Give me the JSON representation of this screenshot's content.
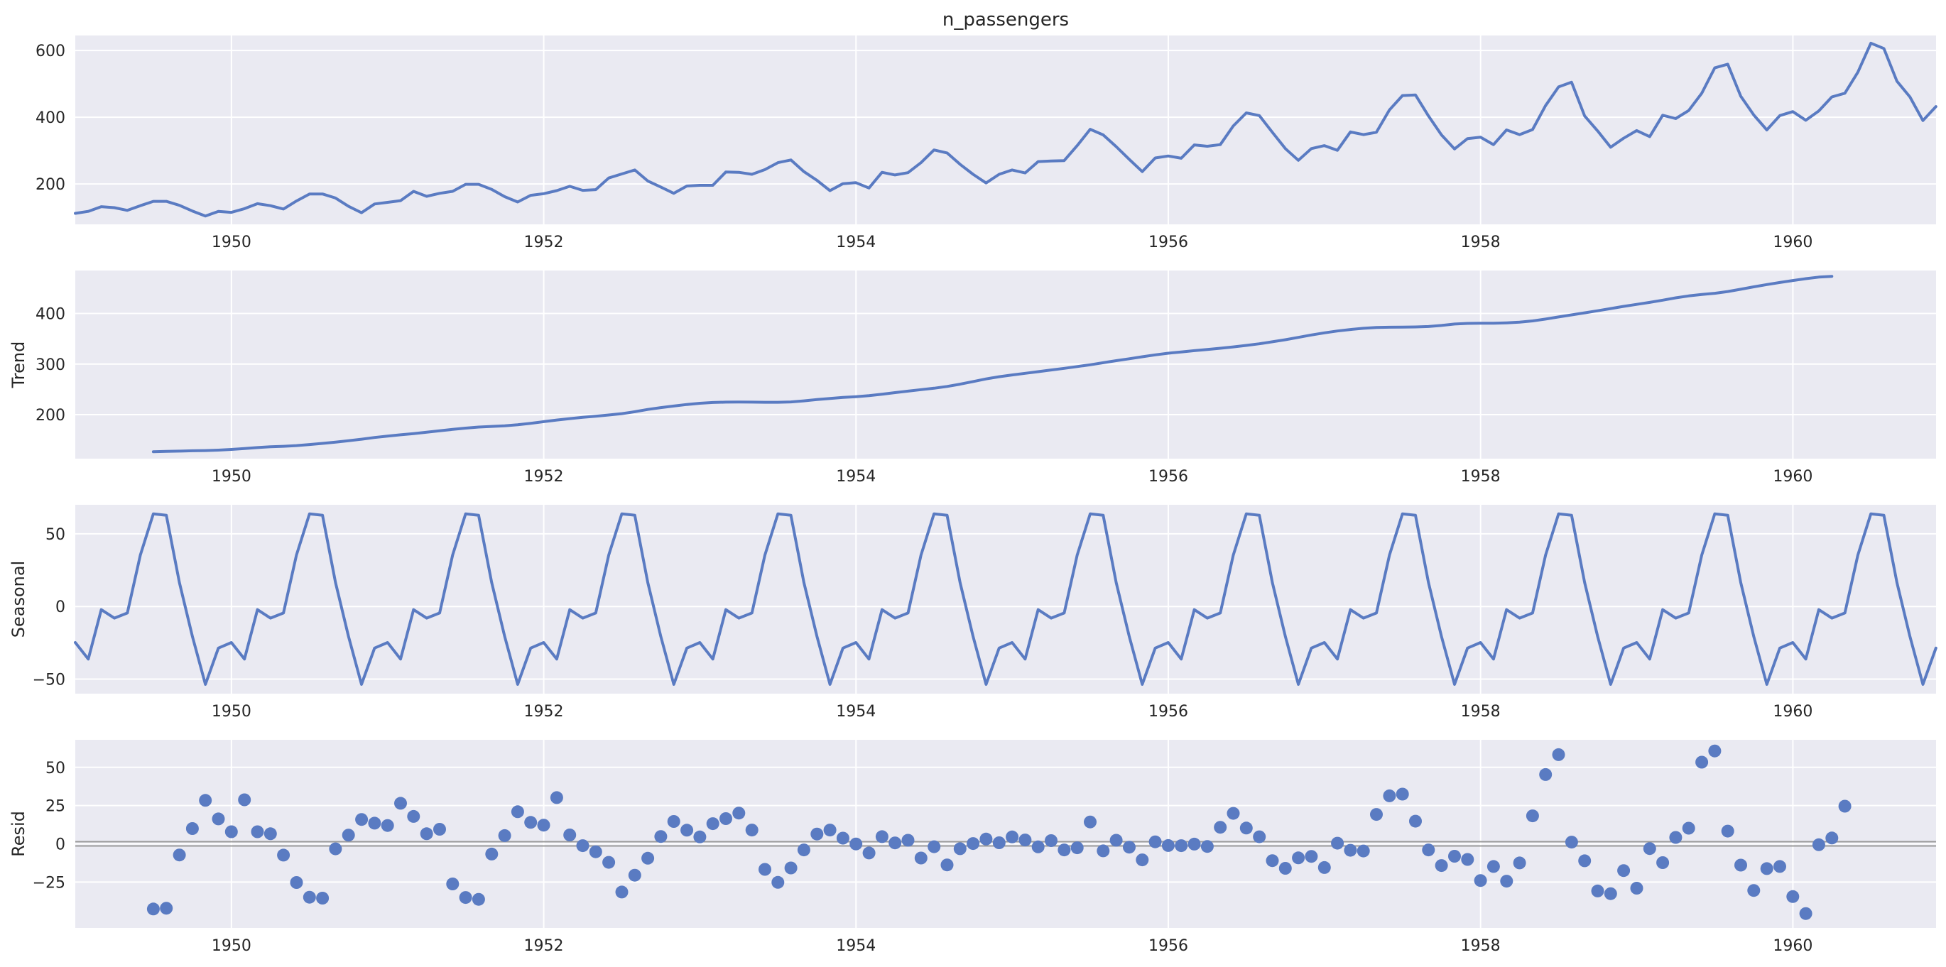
{
  "chart_data": [
    {
      "type": "line",
      "title": "n_passengers",
      "ylabel": "",
      "xlim": [
        1949.0,
        1960.917
      ],
      "ylim": [
        79,
        645
      ],
      "x_ticks": [
        "1950",
        "1952",
        "1954",
        "1956",
        "1958",
        "1960"
      ],
      "y_ticks": [
        "200",
        "400",
        "600"
      ],
      "series": [
        {
          "x_start": 1949.0,
          "x_step": 0.08333,
          "values": [
            112,
            118,
            132,
            129,
            121,
            135,
            148,
            148,
            136,
            119,
            104,
            118,
            115,
            126,
            141,
            135,
            125,
            149,
            170,
            170,
            158,
            133,
            114,
            140,
            145,
            150,
            178,
            163,
            172,
            178,
            199,
            199,
            184,
            162,
            146,
            166,
            171,
            180,
            193,
            181,
            183,
            218,
            230,
            242,
            209,
            191,
            172,
            194,
            196,
            196,
            236,
            235,
            229,
            243,
            264,
            272,
            237,
            211,
            180,
            201,
            204,
            188,
            235,
            227,
            234,
            264,
            302,
            293,
            259,
            229,
            203,
            229,
            242,
            233,
            267,
            269,
            270,
            315,
            364,
            347,
            312,
            274,
            237,
            278,
            284,
            277,
            317,
            313,
            318,
            374,
            413,
            405,
            355,
            306,
            271,
            306,
            315,
            301,
            356,
            348,
            355,
            422,
            465,
            467,
            404,
            347,
            305,
            336,
            340,
            318,
            362,
            348,
            363,
            435,
            491,
            505,
            404,
            359,
            310,
            337,
            360,
            342,
            406,
            396,
            420,
            472,
            548,
            559,
            463,
            407,
            362,
            405,
            417,
            391,
            419,
            461,
            472,
            535,
            622,
            606,
            508,
            461,
            390,
            432
          ]
        }
      ]
    },
    {
      "type": "line",
      "title": "",
      "ylabel": "Trend",
      "xlim": [
        1949.0,
        1960.917
      ],
      "ylim": [
        113,
        485
      ],
      "x_ticks": [
        "1950",
        "1952",
        "1954",
        "1956",
        "1958",
        "1960"
      ],
      "y_ticks": [
        "200",
        "300",
        "400"
      ],
      "series": [
        {
          "x_start": 1949.5,
          "x_step": 0.08333,
          "values": [
            126.8,
            127.3,
            127.9,
            128.6,
            129.0,
            129.8,
            131.3,
            133.1,
            134.9,
            136.4,
            137.4,
            138.8,
            140.9,
            143.2,
            145.7,
            148.4,
            151.5,
            154.9,
            157.6,
            160.1,
            162.6,
            165.3,
            168.1,
            170.8,
            173.3,
            175.4,
            176.8,
            178.0,
            180.0,
            182.8,
            186.1,
            189.4,
            192.2,
            194.8,
            197.0,
            199.3,
            202.0,
            205.8,
            210.3,
            213.9,
            217.0,
            220.1,
            222.5,
            224.1,
            224.7,
            225.0,
            224.8,
            224.5,
            224.5,
            225.2,
            227.3,
            229.9,
            232.0,
            234.0,
            235.6,
            237.6,
            240.3,
            243.5,
            246.5,
            249.4,
            252.2,
            255.7,
            260.3,
            265.5,
            270.6,
            275.0,
            278.5,
            281.8,
            285.0,
            288.3,
            291.6,
            295.0,
            298.6,
            302.7,
            306.7,
            310.5,
            314.5,
            318.3,
            321.4,
            324.0,
            326.5,
            328.8,
            331.3,
            333.9,
            336.9,
            340.2,
            344.0,
            348.1,
            352.8,
            357.6,
            361.7,
            365.4,
            368.4,
            370.8,
            372.3,
            372.8,
            373.0,
            373.4,
            374.3,
            376.4,
            379.2,
            380.4,
            380.7,
            380.9,
            381.5,
            382.8,
            385.4,
            389.0,
            393.2,
            397.3,
            401.4,
            405.4,
            409.8,
            414.1,
            418.0,
            422.0,
            426.3,
            430.9,
            434.8,
            437.5,
            440.0,
            443.5,
            448.0,
            452.7,
            457.2,
            461.3,
            465.2,
            468.8,
            471.9,
            473.5
          ]
        }
      ]
    },
    {
      "type": "line",
      "title": "",
      "ylabel": "Seasonal",
      "xlim": [
        1949.0,
        1960.917
      ],
      "ylim": [
        -60,
        70
      ],
      "x_ticks": [
        "1950",
        "1952",
        "1954",
        "1956",
        "1958",
        "1960"
      ],
      "y_ticks": [
        "50",
        "0",
        "−50"
      ],
      "series": [
        {
          "x_start": 1949.0,
          "x_step": 0.08333,
          "cycle": [
            -24.8,
            -36.2,
            -2.2,
            -8.0,
            -4.5,
            35.4,
            63.8,
            62.8,
            16.5,
            -20.6,
            -53.6,
            -28.6
          ],
          "n_points": 144
        }
      ]
    },
    {
      "type": "scatter",
      "title": "",
      "ylabel": "Resid",
      "xlim": [
        1949.0,
        1960.917
      ],
      "ylim": [
        -55,
        68
      ],
      "x_ticks": [
        "1950",
        "1952",
        "1954",
        "1956",
        "1958",
        "1960"
      ],
      "y_ticks": [
        "50",
        "25",
        "0",
        "−25"
      ],
      "baseline": 0,
      "series": [
        {
          "x_start": 1949.5,
          "x_step": 0.08333,
          "values": [
            -42.6,
            -42.1,
            -7.3,
            10.0,
            28.4,
            16.3,
            7.9,
            28.8,
            7.9,
            6.6,
            -7.4,
            -25.3,
            -34.9,
            -35.5,
            -3.3,
            5.7,
            15.9,
            13.5,
            12.0,
            26.5,
            17.9,
            6.6,
            9.5,
            -26.2,
            -35.1,
            -36.3,
            -6.7,
            5.4,
            21.0,
            14.0,
            12.2,
            30.2,
            5.8,
            -1.2,
            -5.2,
            -12.1,
            -31.5,
            -20.5,
            -9.4,
            4.8,
            14.6,
            8.9,
            4.5,
            13.2,
            16.5,
            20.1,
            9.0,
            -16.7,
            -25.2,
            -15.8,
            -4.0,
            6.4,
            9.0,
            3.7,
            -0.1,
            -6.0,
            4.7,
            0.6,
            2.3,
            -9.3,
            -1.9,
            -13.8,
            -3.2,
            0.2,
            3.1,
            0.7,
            4.5,
            2.5,
            -2.0,
            2.1,
            -4.0,
            -2.6,
            14.3,
            -4.6,
            2.3,
            -2.2,
            -10.5,
            1.3,
            -1.1,
            -1.2,
            -0.2,
            -1.7,
            10.8,
            19.9,
            10.3,
            4.6,
            -11.0,
            -16.0,
            -9.2,
            -8.2,
            -15.5,
            0.4,
            -4.2,
            -4.7,
            19.2,
            31.4,
            32.5,
            14.8,
            -4.0,
            -14.2,
            -8.1,
            -10.2,
            -24.0,
            -14.8,
            -24.4,
            -12.5,
            18.3,
            45.3,
            58.3,
            1.1,
            -11.1,
            -30.8,
            -32.6,
            -17.5,
            -29.0,
            -3.1,
            -12.3,
            4.2,
            10.2,
            53.4,
            60.7,
            8.3,
            -13.9,
            -30.5,
            -16.2,
            -14.8,
            -34.5,
            -45.6,
            -0.6,
            3.8,
            24.6
          ]
        }
      ]
    }
  ]
}
